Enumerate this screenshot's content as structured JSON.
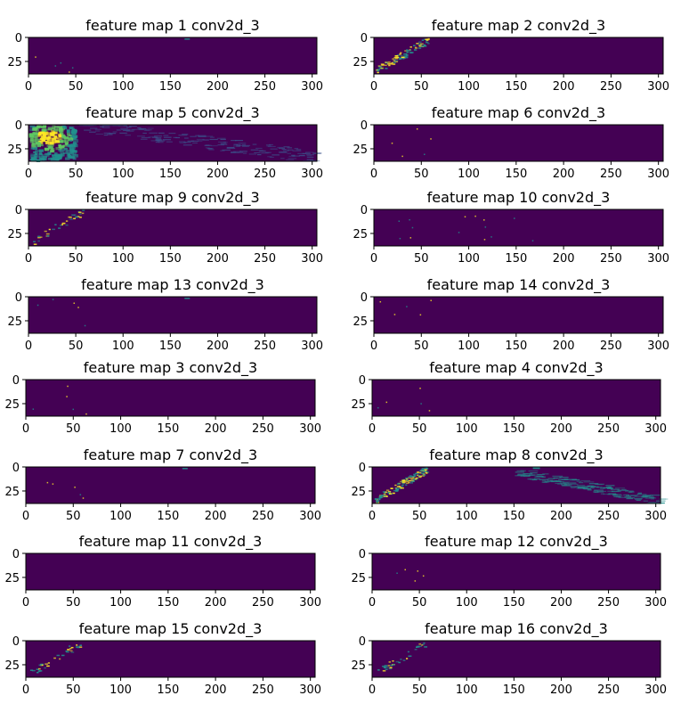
{
  "colormap": {
    "low": "#440154",
    "mid": "#21908d",
    "high": "#fde725"
  },
  "chart_data": [
    {
      "type": "heatmap",
      "title": "feature map 1 conv2d_3",
      "xlim": [
        0,
        305
      ],
      "ylim": [
        38,
        0
      ],
      "xticks": [
        0,
        50,
        100,
        150,
        200,
        250,
        300
      ],
      "yticks": [
        0,
        25
      ],
      "pattern": "sparse-top-dot"
    },
    {
      "type": "heatmap",
      "title": "feature map 2 conv2d_3",
      "xlim": [
        0,
        305
      ],
      "ylim": [
        38,
        0
      ],
      "xticks": [
        0,
        50,
        100,
        150,
        200,
        250,
        300
      ],
      "yticks": [
        0,
        25
      ],
      "pattern": "diagonal-bright"
    },
    {
      "type": "heatmap",
      "title": "feature map 5 conv2d_3",
      "xlim": [
        0,
        305
      ],
      "ylim": [
        38,
        0
      ],
      "xticks": [
        0,
        50,
        100,
        150,
        200,
        250,
        300
      ],
      "yticks": [
        0,
        25
      ],
      "pattern": "blob-left-bright"
    },
    {
      "type": "heatmap",
      "title": "feature map 6 conv2d_3",
      "xlim": [
        0,
        305
      ],
      "ylim": [
        38,
        0
      ],
      "xticks": [
        0,
        50,
        100,
        150,
        200,
        250,
        300
      ],
      "yticks": [
        0,
        25
      ],
      "pattern": "sparse"
    },
    {
      "type": "heatmap",
      "title": "feature map 9 conv2d_3",
      "xlim": [
        0,
        305
      ],
      "ylim": [
        38,
        0
      ],
      "xticks": [
        0,
        50,
        100,
        150,
        200,
        250,
        300
      ],
      "yticks": [
        0,
        25
      ],
      "pattern": "diagonal-faint"
    },
    {
      "type": "heatmap",
      "title": "feature map 10 conv2d_3",
      "xlim": [
        0,
        305
      ],
      "ylim": [
        38,
        0
      ],
      "xticks": [
        0,
        50,
        100,
        150,
        200,
        250,
        300
      ],
      "yticks": [
        0,
        25
      ],
      "pattern": "sparse-spread"
    },
    {
      "type": "heatmap",
      "title": "feature map 13 conv2d_3",
      "xlim": [
        0,
        305
      ],
      "ylim": [
        38,
        0
      ],
      "xticks": [
        0,
        50,
        100,
        150,
        200,
        250,
        300
      ],
      "yticks": [
        0,
        25
      ],
      "pattern": "sparse-top-dot"
    },
    {
      "type": "heatmap",
      "title": "feature map 14 conv2d_3",
      "xlim": [
        0,
        305
      ],
      "ylim": [
        38,
        0
      ],
      "xticks": [
        0,
        50,
        100,
        150,
        200,
        250,
        300
      ],
      "yticks": [
        0,
        25
      ],
      "pattern": "sparse"
    },
    {
      "type": "heatmap",
      "title": "feature map 3 conv2d_3",
      "xlim": [
        0,
        305
      ],
      "ylim": [
        38,
        0
      ],
      "xticks": [
        0,
        50,
        100,
        150,
        200,
        250,
        300
      ],
      "yticks": [
        0,
        25
      ],
      "pattern": "sparse"
    },
    {
      "type": "heatmap",
      "title": "feature map 4 conv2d_3",
      "xlim": [
        0,
        305
      ],
      "ylim": [
        38,
        0
      ],
      "xticks": [
        0,
        50,
        100,
        150,
        200,
        250,
        300
      ],
      "yticks": [
        0,
        25
      ],
      "pattern": "sparse"
    },
    {
      "type": "heatmap",
      "title": "feature map 7 conv2d_3",
      "xlim": [
        0,
        305
      ],
      "ylim": [
        38,
        0
      ],
      "xticks": [
        0,
        50,
        100,
        150,
        200,
        250,
        300
      ],
      "yticks": [
        0,
        25
      ],
      "pattern": "sparse-top-dot"
    },
    {
      "type": "heatmap",
      "title": "feature map 8 conv2d_3",
      "xlim": [
        0,
        305
      ],
      "ylim": [
        38,
        0
      ],
      "xticks": [
        0,
        50,
        100,
        150,
        200,
        250,
        300
      ],
      "yticks": [
        0,
        25
      ],
      "pattern": "diagonal-streaks"
    },
    {
      "type": "heatmap",
      "title": "feature map 11 conv2d_3",
      "xlim": [
        0,
        305
      ],
      "ylim": [
        38,
        0
      ],
      "xticks": [
        0,
        50,
        100,
        150,
        200,
        250,
        300
      ],
      "yticks": [
        0,
        25
      ],
      "pattern": "empty"
    },
    {
      "type": "heatmap",
      "title": "feature map 12 conv2d_3",
      "xlim": [
        0,
        305
      ],
      "ylim": [
        38,
        0
      ],
      "xticks": [
        0,
        50,
        100,
        150,
        200,
        250,
        300
      ],
      "yticks": [
        0,
        25
      ],
      "pattern": "sparse"
    },
    {
      "type": "heatmap",
      "title": "feature map 15 conv2d_3",
      "xlim": [
        0,
        305
      ],
      "ylim": [
        38,
        0
      ],
      "xticks": [
        0,
        50,
        100,
        150,
        200,
        250,
        300
      ],
      "yticks": [
        0,
        25
      ],
      "pattern": "diagonal-faint"
    },
    {
      "type": "heatmap",
      "title": "feature map 16 conv2d_3",
      "xlim": [
        0,
        305
      ],
      "ylim": [
        38,
        0
      ],
      "xticks": [
        0,
        50,
        100,
        150,
        200,
        250,
        300
      ],
      "yticks": [
        0,
        25
      ],
      "pattern": "diagonal-faint"
    }
  ]
}
